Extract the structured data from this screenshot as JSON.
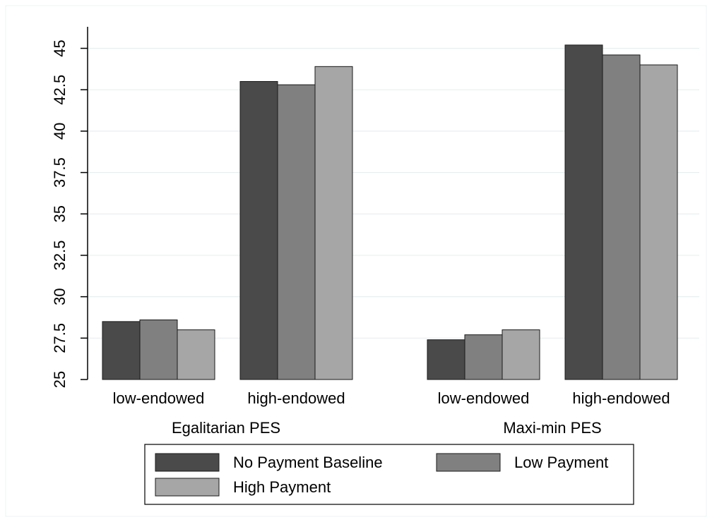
{
  "chart_data": {
    "type": "bar",
    "groups": [
      {
        "label": "Egalitarian PES",
        "categories": [
          "low-endowed",
          "high-endowed"
        ]
      },
      {
        "label": "Maxi-min PES",
        "categories": [
          "low-endowed",
          "high-endowed"
        ]
      }
    ],
    "series": [
      {
        "name": "No Payment Baseline",
        "color": "#4a4a4a",
        "values": [
          28.5,
          43.0,
          27.4,
          45.2
        ]
      },
      {
        "name": "Low Payment",
        "color": "#808080",
        "values": [
          28.6,
          42.8,
          27.7,
          44.6
        ]
      },
      {
        "name": "High Payment",
        "color": "#a6a6a6",
        "values": [
          28.0,
          43.9,
          28.0,
          44.0
        ]
      }
    ],
    "ylim": [
      25,
      46.3
    ],
    "yticks": [
      "25",
      "27.5",
      "30",
      "32.5",
      "35",
      "37.5",
      "40",
      "42.5",
      "45"
    ],
    "ytick_values": [
      25,
      27.5,
      30,
      32.5,
      35,
      37.5,
      40,
      42.5,
      45
    ],
    "grid": true,
    "legend_position": "bottom"
  }
}
